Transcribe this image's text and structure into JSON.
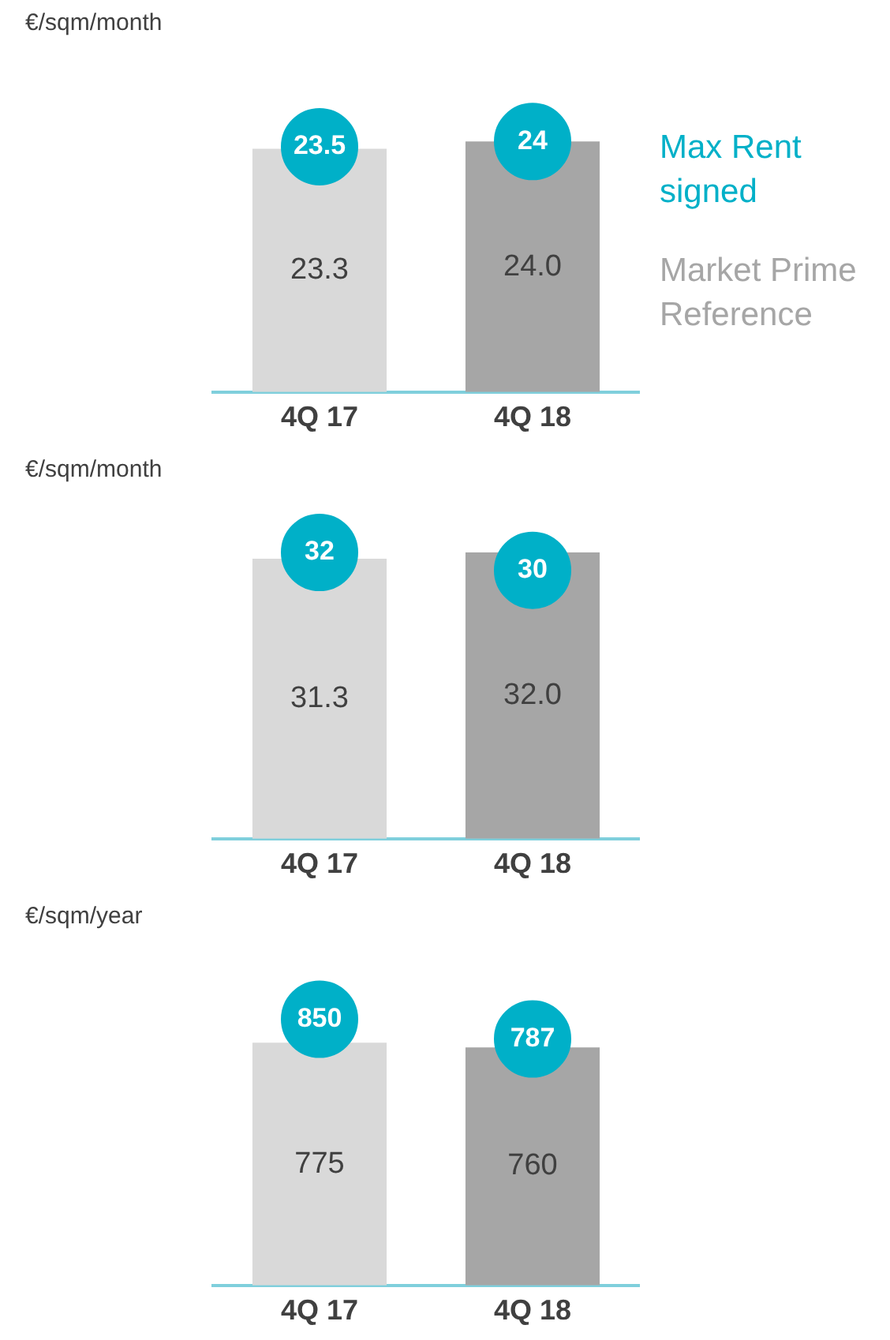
{
  "chart_data": [
    {
      "type": "bar",
      "ylabel": "€/sqm/month",
      "categories": [
        "4Q 17",
        "4Q 18"
      ],
      "legend": "right",
      "marker": "circle",
      "series": [
        {
          "name": "Market Prime Reference",
          "color": "#a6a6a6",
          "colors": [
            "#d9d9d9",
            "#a6a6a6"
          ],
          "values": [
            23.3,
            24.0
          ],
          "value_labels": [
            "23.3",
            "24.0"
          ]
        },
        {
          "name": "Max Rent signed",
          "type": "scatter",
          "color": "#00b0c8",
          "x": [
            "4Q 17",
            "4Q 18"
          ],
          "values": [
            23.5,
            24
          ],
          "value_labels": [
            "23.5",
            "24"
          ]
        }
      ]
    },
    {
      "type": "bar",
      "ylabel": "€/sqm/month",
      "categories": [
        "4Q 17",
        "4Q 18"
      ],
      "legend": false,
      "marker": "circle",
      "series": [
        {
          "colors": [
            "#d9d9d9",
            "#a6a6a6"
          ],
          "values": [
            31.3,
            32.0
          ],
          "value_labels": [
            "31.3",
            "32.0"
          ]
        },
        {
          "type": "scatter",
          "color": "#00b0c8",
          "x": [
            "4Q 17",
            "4Q 18"
          ],
          "values": [
            32,
            30
          ],
          "value_labels": [
            "32",
            "30"
          ]
        }
      ]
    },
    {
      "type": "bar",
      "ylabel": "€/sqm/year",
      "categories": [
        "4Q 17",
        "4Q 18"
      ],
      "legend": false,
      "marker": "circle",
      "series": [
        {
          "colors": [
            "#d9d9d9",
            "#a6a6a6"
          ],
          "values": [
            775,
            760
          ],
          "value_labels": [
            "775",
            "760"
          ]
        },
        {
          "type": "scatter",
          "color": "#00b0c8",
          "x": [
            "4Q 17",
            "4Q 18"
          ],
          "values": [
            850,
            787
          ],
          "value_labels": [
            "850",
            "787"
          ]
        }
      ]
    }
  ]
}
